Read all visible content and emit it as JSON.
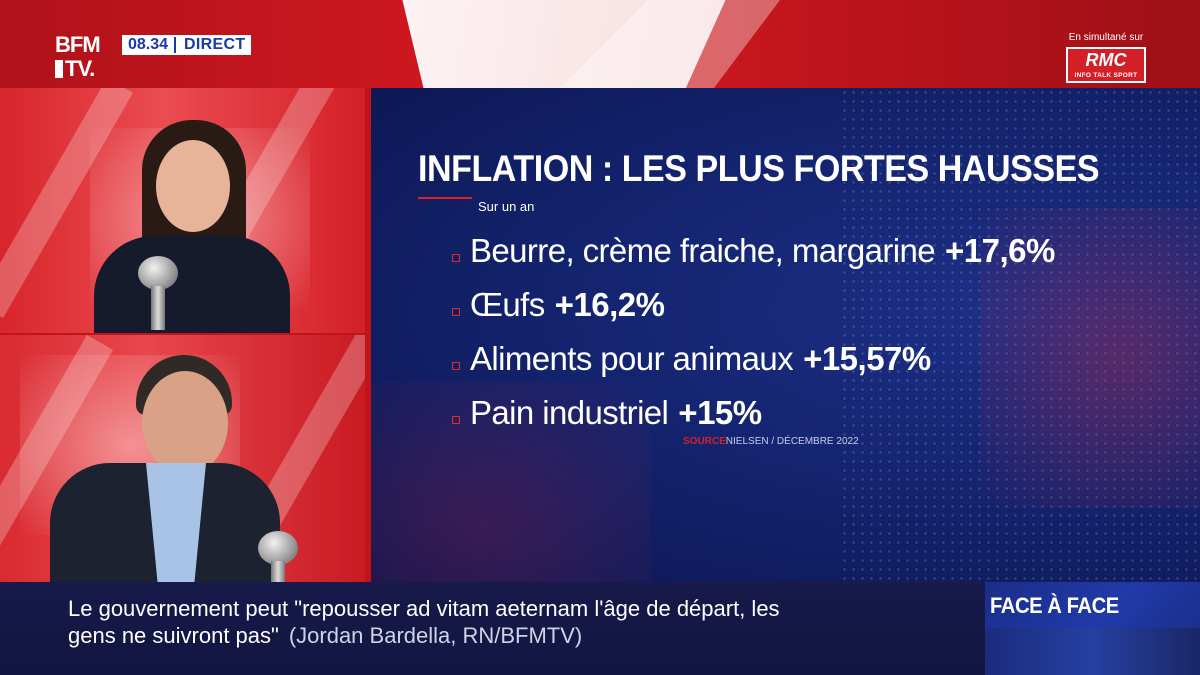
{
  "channel": {
    "logo_line1": "BFM",
    "logo_line2": "TV.",
    "time": "08.34",
    "live_label": "DIRECT",
    "simulcast_label": "En simultané sur",
    "partner_logo": "RMC",
    "partner_tagline": "INFO TALK SPORT"
  },
  "infographic": {
    "title": "INFLATION : LES PLUS FORTES HAUSSES",
    "subtitle": "Sur un an",
    "items": [
      {
        "label": "Beurre, crème fraiche, margarine",
        "value": "+17,6%"
      },
      {
        "label": "Œufs",
        "value": "+16,2%"
      },
      {
        "label": "Aliments pour animaux",
        "value": "+15,57%"
      },
      {
        "label": "Pain industriel",
        "value": "+15%"
      }
    ],
    "source_label": "SOURCE",
    "source_text": "NIELSEN / DÉCEMBRE 2022"
  },
  "ticker": {
    "line1": "Le gouvernement peut \"repousser ad vitam aeternam l'âge de départ, les",
    "line2": "gens ne suivront pas\"",
    "attribution": "(Jordan Bardella, RN/BFMTV)"
  },
  "program": {
    "name": "FACE À FACE"
  },
  "colors": {
    "brand_red": "#c8161d",
    "navy": "#142470",
    "accent_blue": "#1a3aa8"
  }
}
